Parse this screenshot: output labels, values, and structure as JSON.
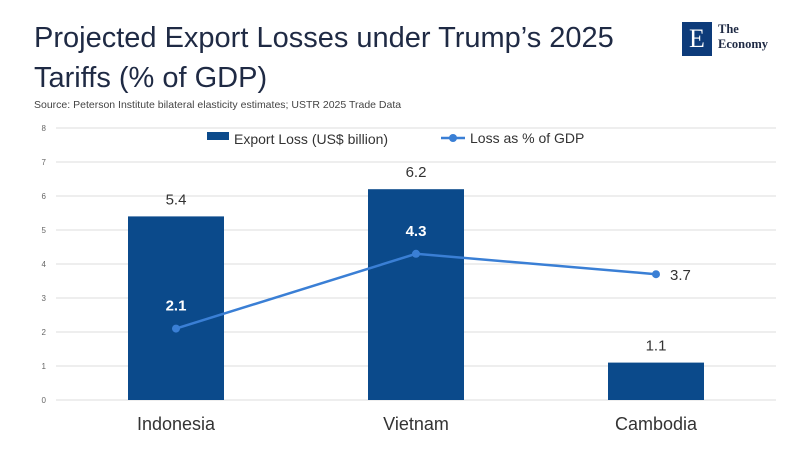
{
  "header": {
    "title": "Projected Export Losses under Trump’s 2025 Tariffs (% of GDP)",
    "source": "Source:  Peterson Institute bilateral elasticity estimates; USTR 2025 Trade Data"
  },
  "logo": {
    "mark": "E",
    "line1": "The",
    "line2": "Economy"
  },
  "colors": {
    "bar": "#0b4a8b",
    "line": "#3a7fd5",
    "grid": "#dcdcdc",
    "text": "#333333"
  },
  "chart_data": {
    "type": "bar",
    "categories": [
      "Indonesia",
      "Vietnam",
      "Cambodia"
    ],
    "series": [
      {
        "name": "Export Loss (US$ billion)",
        "kind": "bar",
        "values": [
          5.4,
          6.2,
          1.1
        ],
        "labels": [
          "5.4",
          "6.2",
          "1.1"
        ]
      },
      {
        "name": "Loss as % of GDP",
        "kind": "line",
        "values": [
          2.1,
          4.3,
          3.7
        ],
        "labels": [
          "2.1",
          "4.3",
          "3.7"
        ]
      }
    ],
    "ylim": [
      0,
      8
    ],
    "yticks": [
      "0",
      "1",
      "2",
      "3",
      "4",
      "5",
      "6",
      "7",
      "8"
    ],
    "grid": true,
    "legend": "top-center",
    "xlabel": "",
    "ylabel": ""
  }
}
